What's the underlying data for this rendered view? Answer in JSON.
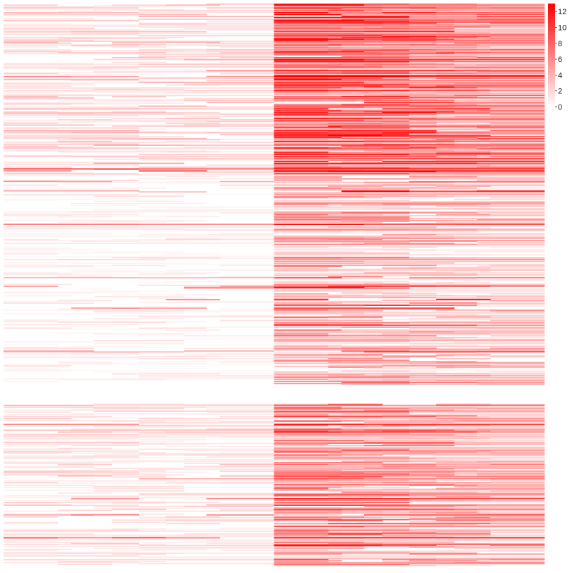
{
  "chart_data": {
    "type": "heatmap",
    "title": "",
    "xlabel": "",
    "ylabel": "",
    "n_columns": 2,
    "column_split_at": 0.5,
    "row_groups": [
      {
        "rows": 180,
        "left_level": 1.8,
        "right_level": 5.5,
        "left_density": 0.55,
        "right_density": 0.95
      },
      {
        "rows": 220,
        "left_level": 0.8,
        "right_level": 3.0,
        "left_density": 0.35,
        "right_density": 0.7
      },
      {
        "rows": 20,
        "left_level": 0.0,
        "right_level": 0.0,
        "left_density": 0.0,
        "right_density": 0.0
      },
      {
        "rows": 170,
        "left_level": 1.5,
        "right_level": 4.0,
        "left_density": 0.5,
        "right_density": 0.85
      }
    ],
    "value_range": [
      0,
      13
    ],
    "color_scale": {
      "low": "#ffffff",
      "high": "#ff0000"
    },
    "legend": {
      "position": "right",
      "ticks": [
        "0",
        "2",
        "4",
        "6",
        "8",
        "10",
        "12"
      ],
      "tick_values": [
        0,
        2,
        4,
        6,
        8,
        10,
        12
      ]
    }
  }
}
